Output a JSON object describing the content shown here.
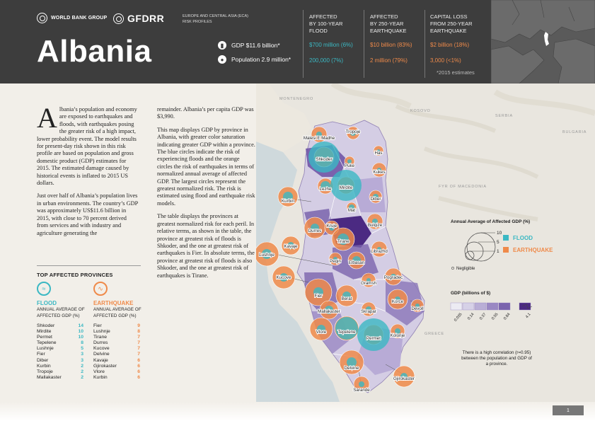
{
  "header": {
    "wb_logo": "WORLD BANK GROUP",
    "gfdrr_logo": "GFDRR",
    "country": "Albania",
    "region_line1": "EUROPE AND CENTRAL ASIA (ECA)",
    "region_line2": "RISK PROFILES",
    "gdp": "GDP $11.6 billion*",
    "population": "Population 2.9 million*",
    "estimates_note": "*2015 estimates",
    "columns": [
      {
        "h1": "AFFECTED",
        "h2": "BY 100-YEAR",
        "h3": "FLOOD",
        "v1": "$700 million (6%)",
        "v2": "200,000 (7%)"
      },
      {
        "h1": "AFFECTED",
        "h2": "BY 250-YEAR",
        "h3": "EARTHQUAKE",
        "v1": "$10 billion (83%)",
        "v2": "2 million (79%)"
      },
      {
        "h1": "CAPITAL LOSS",
        "h2": "FROM 250-YEAR",
        "h3": "EARTHQUAKE",
        "v1": "$2 billion (18%)",
        "v2": "3,000 (<1%)"
      }
    ]
  },
  "body_text": {
    "dropcap": "A",
    "p1": "lbania’s population and economy are exposed to earthquakes and floods, with earthquakes posing the greater risk of a high impact, lower probability event. The model results for present-day risk shown in this risk profile are based on population and gross domestic product (GDP) estimates for 2015. The estimated damage caused by historical events is inflated to 2015 US dollars.",
    "p2": "Just over half of Albania’s population lives in urban environments. The country’s GDP was approximately US$11.6 billion in 2015, with close to 70 percent derived from services and with industry and agriculture generating the",
    "p3": "remainder. Albania’s per capita GDP was $3,990.",
    "p4": "This map displays GDP by province in Albania, with greater color saturation indicating greater GDP within a province. The blue circles indicate the risk of experiencing floods and the orange circles the risk of earthquakes in terms of normalized annual average of affected GDP. The largest circles represent the greatest normalized risk. The risk is estimated using flood and earthquake risk models.",
    "p5": "The table displays the provinces at greatest normalized risk for each peril. In relative terms, as shown in the table, the province at greatest risk of floods is Shkoder, and the one at greatest risk of earthquakes is Fier. In absolute terms, the province at greatest risk of floods is also Shkoder, and the one at greatest risk of earthquakes is Tirane."
  },
  "top_provinces": {
    "title": "TOP AFFECTED PROVINCES",
    "flood": {
      "label": "FLOOD",
      "sub1": "ANNUAL AVERAGE OF",
      "sub2": "AFFECTED GDP (%)",
      "rows": [
        {
          "name": "Shkoder",
          "value": "14"
        },
        {
          "name": "Mirdite",
          "value": "10"
        },
        {
          "name": "Permet",
          "value": "10"
        },
        {
          "name": "Tepelene",
          "value": "8"
        },
        {
          "name": "Lushnje",
          "value": "5"
        },
        {
          "name": "Fier",
          "value": "3"
        },
        {
          "name": "Diber",
          "value": "3"
        },
        {
          "name": "Kurbin",
          "value": "2"
        },
        {
          "name": "Tropoje",
          "value": "2"
        },
        {
          "name": "Mallakaster",
          "value": "2"
        }
      ]
    },
    "earthquake": {
      "label": "EARTHQUAKE",
      "sub1": "ANNUAL AVERAGE OF",
      "sub2": "AFFECTED GDP (%)",
      "rows": [
        {
          "name": "Fier",
          "value": "9"
        },
        {
          "name": "Lushnje",
          "value": "8"
        },
        {
          "name": "Tirane",
          "value": "7"
        },
        {
          "name": "Durres",
          "value": "7"
        },
        {
          "name": "Kucove",
          "value": "7"
        },
        {
          "name": "Delvine",
          "value": "7"
        },
        {
          "name": "Kavaje",
          "value": "6"
        },
        {
          "name": "Gjirokaster",
          "value": "6"
        },
        {
          "name": "Vlore",
          "value": "6"
        },
        {
          "name": "Kurbin",
          "value": "6"
        }
      ]
    }
  },
  "map": {
    "countries": [
      "MONTENEGRO",
      "KOSOVO",
      "SERBIA",
      "BULGARIA",
      "FYR OF MACEDONIA",
      "GREECE"
    ],
    "provinces": [
      "Malesi E Madhe",
      "Tropoje",
      "Has",
      "Shkoder",
      "Puke",
      "Kukes",
      "Lezhe",
      "Mirdite",
      "Diber",
      "Kurbin",
      "Mat",
      "Durres",
      "Kruje",
      "Bulqize",
      "Tirane",
      "Kavaje",
      "Librazhd",
      "Lushnje",
      "Peqin",
      "Elbasan",
      "Kucove",
      "Gramsh",
      "Pogradec",
      "Fier",
      "Berat",
      "Korce",
      "Devoll",
      "Mallakaster",
      "Skrapar",
      "Vlore",
      "Tepelene",
      "Permet",
      "Kolonje",
      "Delvine",
      "Gjirokaster",
      "Sarande"
    ],
    "colors": {
      "flood": "#3bb8c3",
      "earthquake": "#ef8a4a",
      "gdp_dark": "#4b2a82"
    }
  },
  "legend": {
    "title": "Annual Average of Affected GDP (%)",
    "sizes": [
      "10",
      "5",
      "1"
    ],
    "negligible": "Negligible",
    "flood": "FLOOD",
    "earthquake": "EARTHQUAKE",
    "gdp_title": "GDP (billions of $)",
    "gdp_ticks": [
      "0.035",
      "0.14",
      "0.37",
      "0.55",
      "0.84",
      "4.1"
    ],
    "note": "There is a high correlation (r=0.95) between the population and GDP of a province."
  },
  "footer": {
    "page": "1"
  }
}
